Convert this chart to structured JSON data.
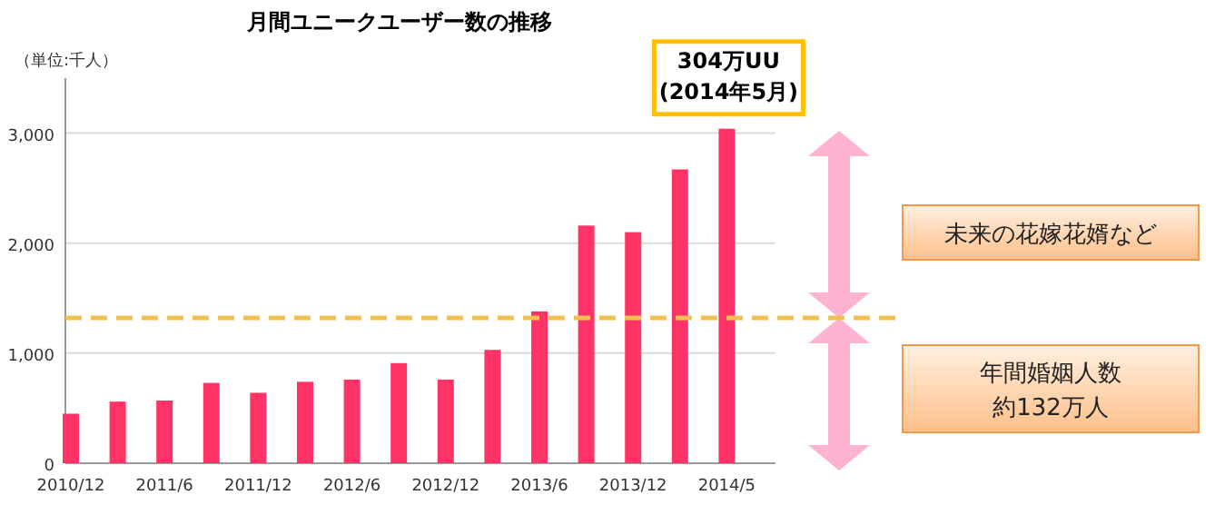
{
  "chart_data": {
    "type": "bar",
    "title": "月間ユニークユーザー数の推移",
    "ylabel": "（単位:千人）",
    "categories": [
      "2010/12",
      null,
      "2011/6",
      null,
      "2011/12",
      null,
      "2012/6",
      null,
      "2012/12",
      null,
      "2013/6",
      null,
      "2013/12",
      null,
      "2014/5"
    ],
    "values": [
      450,
      560,
      570,
      730,
      640,
      740,
      760,
      910,
      760,
      1030,
      1380,
      2160,
      2100,
      2670,
      3040
    ],
    "color": "#ff3366",
    "ylim": [
      0,
      3500
    ],
    "yticks": [
      0,
      {
        "value": 1000,
        "label": "1,000"
      },
      {
        "value": 2000,
        "label": "2,000"
      },
      {
        "value": 3000,
        "label": "3,000"
      }
    ],
    "grid": "y",
    "ref_lines": [
      {
        "axis": "y",
        "value": 1320,
        "color": "#f0c050",
        "line_style": "dashed"
      }
    ],
    "annotations": [
      {
        "text": "304万UU\n(2014年5月)",
        "x": "2014/5",
        "y": 3040
      },
      "未来の花嫁花婿など",
      "年間婚姻人数",
      "約132万人"
    ]
  }
}
